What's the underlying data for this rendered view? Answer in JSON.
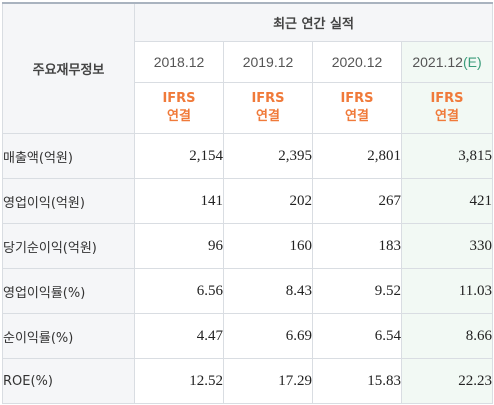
{
  "table": {
    "label_header": "주요재무정보",
    "group_header": "최근 연간 실적",
    "years": [
      {
        "year": "2018.12",
        "suffix": ""
      },
      {
        "year": "2019.12",
        "suffix": ""
      },
      {
        "year": "2020.12",
        "suffix": ""
      },
      {
        "year": "2021.12",
        "suffix": "(E)"
      }
    ],
    "basis": [
      {
        "line1": "IFRS",
        "line2": "연결"
      },
      {
        "line1": "IFRS",
        "line2": "연결"
      },
      {
        "line1": "IFRS",
        "line2": "연결"
      },
      {
        "line1": "IFRS",
        "line2": "연결"
      }
    ],
    "rows": [
      {
        "label": "매출액(억원)",
        "values": [
          "2,154",
          "2,395",
          "2,801",
          "3,815"
        ]
      },
      {
        "label": "영업이익(억원)",
        "values": [
          "141",
          "202",
          "267",
          "421"
        ]
      },
      {
        "label": "당기순이익(억원)",
        "values": [
          "96",
          "160",
          "183",
          "330"
        ]
      },
      {
        "label": "영업이익률(%)",
        "values": [
          "6.56",
          "8.43",
          "9.52",
          "11.03"
        ]
      },
      {
        "label": "순이익률(%)",
        "values": [
          "4.47",
          "6.69",
          "6.54",
          "8.66"
        ]
      },
      {
        "label": "ROE(%)",
        "values": [
          "12.52",
          "17.29",
          "15.83",
          "22.23"
        ]
      }
    ]
  }
}
